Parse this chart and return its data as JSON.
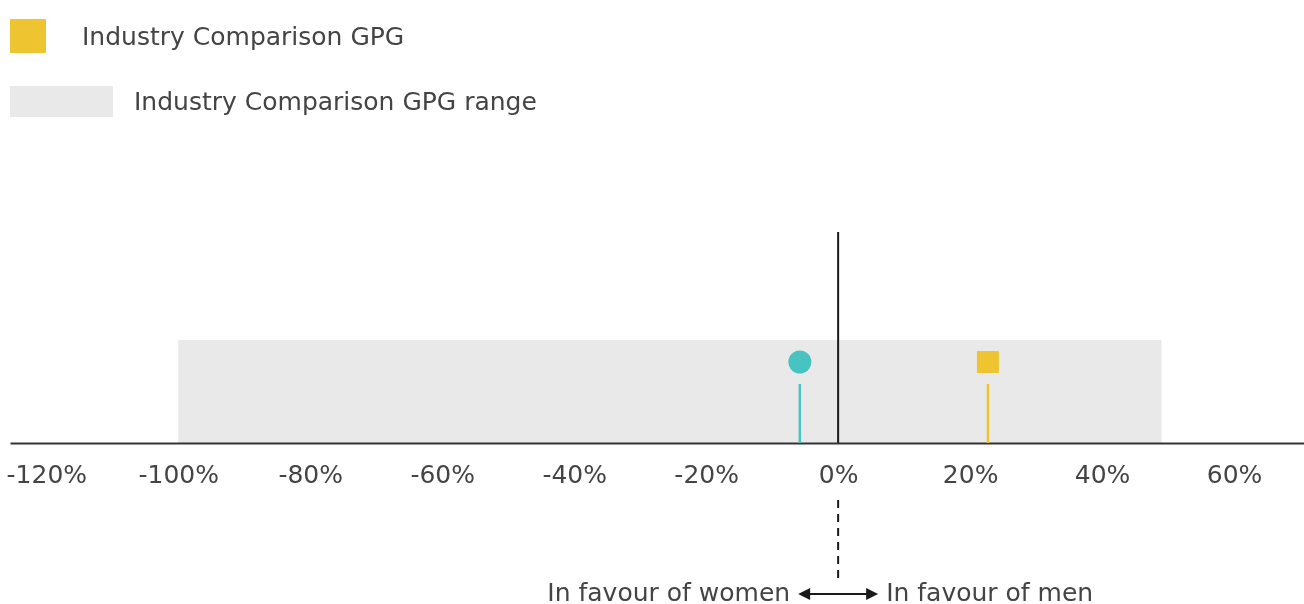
{
  "chart_data": {
    "type": "lollipop",
    "orientation": "horizontal",
    "legend": "top left",
    "categories": [
      null
    ],
    "series": [
      {
        "color": "#47c3c1",
        "values": [
          -5.8
        ],
        "marker": "circle"
      },
      {
        "name": "Industry Comparison GPG",
        "color": "#eec531",
        "values": [
          22.7
        ],
        "marker": "square"
      }
    ],
    "xlim": [
      -125.5,
      70.6
    ],
    "xticks": [
      {
        "value": -120,
        "label": "-120%"
      },
      {
        "value": -100,
        "label": "-100%"
      },
      {
        "value": -80,
        "label": "-80%"
      },
      {
        "value": -60,
        "label": "-60%"
      },
      {
        "value": -40,
        "label": "-40%"
      },
      {
        "value": -20,
        "label": "-20%"
      },
      {
        "value": 0,
        "label": "0%"
      },
      {
        "value": 20,
        "label": "20%"
      },
      {
        "value": 40,
        "label": "40%"
      },
      {
        "value": 60,
        "label": "60%"
      }
    ],
    "bands": [
      {
        "axis": "x",
        "from": -100,
        "to": 49,
        "label": "Industry Comparison GPG range",
        "color": "#e9e9e9"
      }
    ],
    "ref_lines": [
      {
        "axis": "x",
        "value": 0,
        "color": "#1a1a1a"
      }
    ],
    "annotations": [
      "In favour of women",
      "In favour of men"
    ]
  }
}
